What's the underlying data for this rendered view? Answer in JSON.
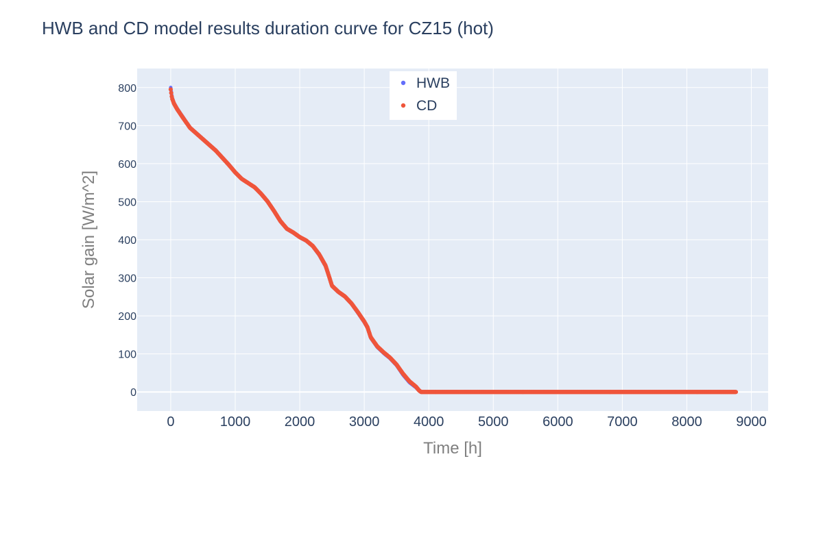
{
  "chart_data": {
    "type": "scatter",
    "title": "HWB and CD model results duration curve for CZ15 (hot)",
    "xlabel": "Time [h]",
    "ylabel": "Solar gain [W/m^2]",
    "xlim": [
      -520,
      9260
    ],
    "ylim": [
      -50,
      850
    ],
    "x_ticks": [
      0,
      1000,
      2000,
      3000,
      4000,
      5000,
      6000,
      7000,
      8000,
      9000
    ],
    "x_tick_labels": [
      "0",
      "1000",
      "2000",
      "3000",
      "4000",
      "5000",
      "6000",
      "7000",
      "8000",
      "9000"
    ],
    "y_ticks": [
      0,
      100,
      200,
      300,
      400,
      500,
      600,
      700,
      800
    ],
    "y_tick_labels": [
      "0",
      "100",
      "200",
      "300",
      "400",
      "500",
      "600",
      "700",
      "800"
    ],
    "grid": true,
    "legend_position": "top-center",
    "x_end": 8760,
    "series": [
      {
        "name": "HWB",
        "color": "#636efa",
        "points": [
          [
            0,
            800
          ],
          [
            20,
            775
          ],
          [
            50,
            760
          ],
          [
            100,
            745
          ],
          [
            200,
            720
          ],
          [
            300,
            695
          ],
          [
            500,
            665
          ],
          [
            700,
            635
          ],
          [
            900,
            598
          ],
          [
            1000,
            578
          ],
          [
            1100,
            560
          ],
          [
            1200,
            549
          ],
          [
            1300,
            538
          ],
          [
            1400,
            520
          ],
          [
            1500,
            500
          ],
          [
            1600,
            475
          ],
          [
            1700,
            448
          ],
          [
            1800,
            428
          ],
          [
            1900,
            418
          ],
          [
            2000,
            406
          ],
          [
            2100,
            397
          ],
          [
            2200,
            383
          ],
          [
            2300,
            360
          ],
          [
            2400,
            330
          ],
          [
            2450,
            305
          ],
          [
            2500,
            278
          ],
          [
            2600,
            262
          ],
          [
            2700,
            250
          ],
          [
            2800,
            232
          ],
          [
            2900,
            208
          ],
          [
            3000,
            183
          ],
          [
            3050,
            168
          ],
          [
            3100,
            142
          ],
          [
            3200,
            118
          ],
          [
            3300,
            102
          ],
          [
            3400,
            88
          ],
          [
            3500,
            70
          ],
          [
            3600,
            45
          ],
          [
            3700,
            25
          ],
          [
            3800,
            12
          ],
          [
            3850,
            3
          ],
          [
            3880,
            0
          ],
          [
            8760,
            0
          ]
        ]
      },
      {
        "name": "CD",
        "color": "#ef553b",
        "points": [
          [
            0,
            795
          ],
          [
            20,
            772
          ],
          [
            50,
            758
          ],
          [
            100,
            743
          ],
          [
            200,
            718
          ],
          [
            300,
            694
          ],
          [
            500,
            664
          ],
          [
            700,
            634
          ],
          [
            900,
            597
          ],
          [
            1000,
            577
          ],
          [
            1100,
            560
          ],
          [
            1200,
            549
          ],
          [
            1300,
            538
          ],
          [
            1400,
            521
          ],
          [
            1500,
            501
          ],
          [
            1600,
            476
          ],
          [
            1700,
            449
          ],
          [
            1800,
            429
          ],
          [
            1900,
            419
          ],
          [
            2000,
            407
          ],
          [
            2100,
            398
          ],
          [
            2200,
            384
          ],
          [
            2300,
            362
          ],
          [
            2400,
            332
          ],
          [
            2450,
            306
          ],
          [
            2500,
            279
          ],
          [
            2600,
            263
          ],
          [
            2700,
            251
          ],
          [
            2800,
            233
          ],
          [
            2900,
            210
          ],
          [
            3000,
            185
          ],
          [
            3050,
            170
          ],
          [
            3100,
            144
          ],
          [
            3200,
            120
          ],
          [
            3300,
            104
          ],
          [
            3400,
            90
          ],
          [
            3500,
            72
          ],
          [
            3600,
            48
          ],
          [
            3700,
            28
          ],
          [
            3800,
            14
          ],
          [
            3850,
            4
          ],
          [
            3880,
            0
          ],
          [
            8760,
            0
          ]
        ]
      }
    ]
  }
}
